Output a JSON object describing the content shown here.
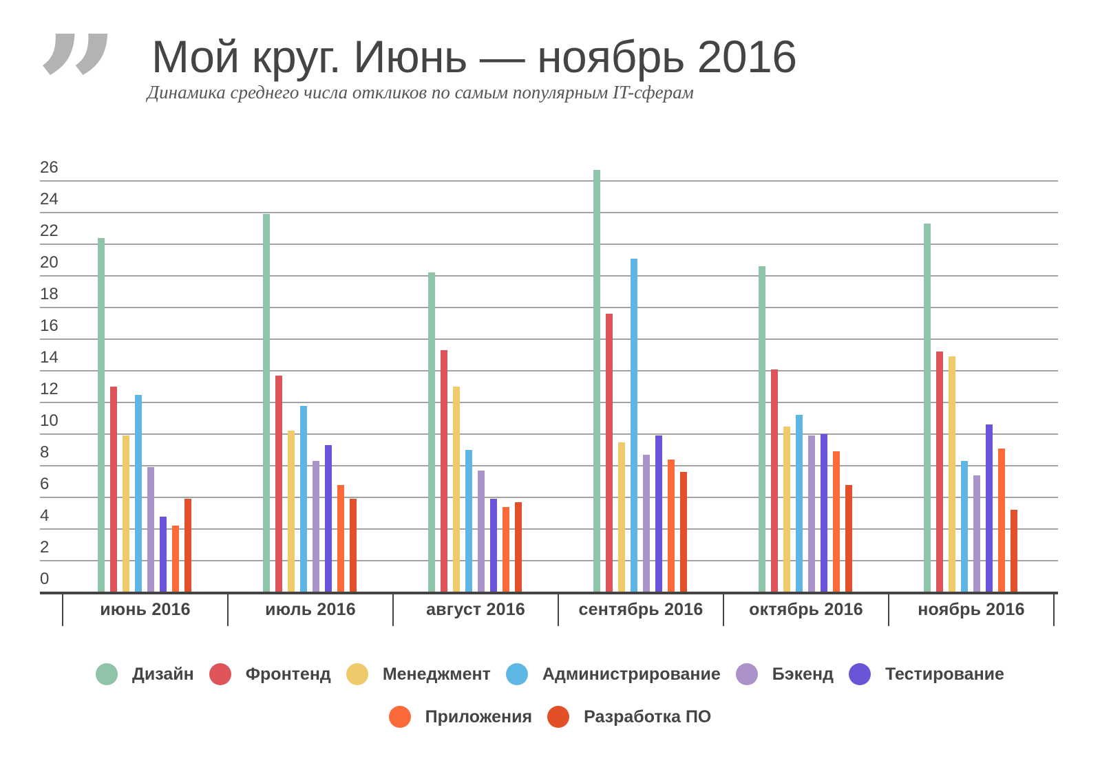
{
  "header": {
    "quote_icon": "quote-mark-icon",
    "quote_glyph": "”",
    "title": "Мой круг. Июнь — ноябрь 2016",
    "subtitle": "Динамика среднего числа откликов по самым популярным IT-сферам"
  },
  "colors": {
    "Дизайн": "#8fc4a8",
    "Фронтенд": "#dd5558",
    "Менеджмент": "#efca6a",
    "Администрирование": "#5eb6e4",
    "Бэкенд": "#ab92c8",
    "Тестирование": "#6c54d8",
    "Приложения": "#fd6a3a",
    "Разработка ПО": "#e34f26",
    "axis": "#444444",
    "grid": "#a2a2a2",
    "quote": "#b3b3b3"
  },
  "chart_data": {
    "type": "bar",
    "title": "Мой круг. Июнь — ноябрь 2016",
    "subtitle": "Динамика среднего числа откликов по самым популярным IT-сферам",
    "xlabel": "",
    "ylabel": "",
    "ylim": [
      0,
      26
    ],
    "yticks": [
      0,
      2,
      4,
      6,
      8,
      10,
      12,
      14,
      16,
      18,
      20,
      22,
      24,
      26
    ],
    "grid": true,
    "legend_position": "bottom",
    "categories": [
      "июнь 2016",
      "июль 2016",
      "август 2016",
      "сентябрь 2016",
      "октябрь 2016",
      "ноябрь 2016"
    ],
    "series": [
      {
        "name": "Дизайн",
        "color": "#8fc4a8",
        "values": [
          22.4,
          23.9,
          20.2,
          26.7,
          20.6,
          23.3
        ]
      },
      {
        "name": "Фронтенд",
        "color": "#dd5558",
        "values": [
          13.0,
          13.7,
          15.3,
          17.6,
          14.1,
          15.2
        ]
      },
      {
        "name": "Менеджмент",
        "color": "#efca6a",
        "values": [
          9.9,
          10.2,
          13.0,
          9.5,
          10.5,
          14.9
        ]
      },
      {
        "name": "Администрирование",
        "color": "#5eb6e4",
        "values": [
          12.5,
          11.8,
          9.0,
          21.1,
          11.2,
          8.3
        ]
      },
      {
        "name": "Бэкенд",
        "color": "#ab92c8",
        "values": [
          7.9,
          8.3,
          7.7,
          8.7,
          9.9,
          7.4
        ]
      },
      {
        "name": "Тестирование",
        "color": "#6c54d8",
        "values": [
          4.8,
          9.3,
          5.9,
          9.9,
          10.0,
          10.6
        ]
      },
      {
        "name": "Приложения",
        "color": "#fd6a3a",
        "values": [
          4.2,
          6.8,
          5.4,
          8.4,
          8.9,
          9.1
        ]
      },
      {
        "name": "Разработка ПО",
        "color": "#e34f26",
        "values": [
          5.9,
          5.9,
          5.7,
          7.6,
          6.8,
          5.2
        ]
      }
    ]
  },
  "legend": {
    "row1": [
      "Дизайн",
      "Фронтенд",
      "Менеджмент",
      "Администрирование",
      "Бэкенд",
      "Тестирование"
    ],
    "row2": [
      "Приложения",
      "Разработка ПО"
    ]
  }
}
